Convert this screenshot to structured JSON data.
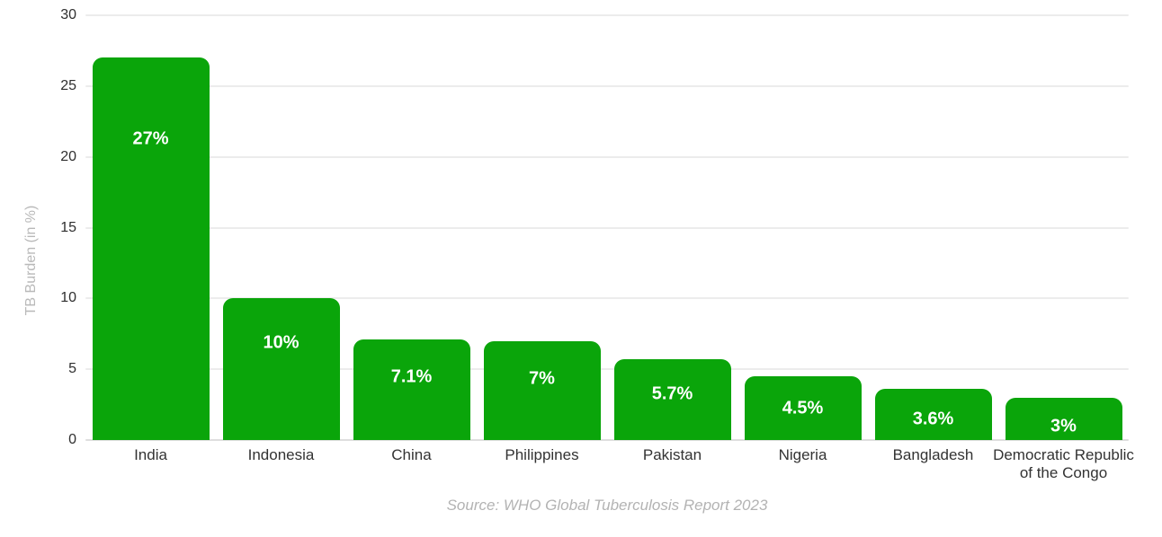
{
  "chart_data": {
    "type": "bar",
    "title": "",
    "categories": [
      "India",
      "Indonesia",
      "China",
      "Philippines",
      "Pakistan",
      "Nigeria",
      "Bangladesh",
      "Democratic Republic of the Congo"
    ],
    "values": [
      27,
      10,
      7.1,
      7,
      5.7,
      4.5,
      3.6,
      3
    ],
    "value_labels": [
      "27%",
      "10%",
      "7.1%",
      "7%",
      "5.7%",
      "4.5%",
      "3.6%",
      "3%"
    ],
    "xlabel": "",
    "ylabel": "TB Burden (in %)",
    "ylim": [
      0,
      30
    ],
    "yticks": [
      0,
      5,
      10,
      15,
      20,
      25,
      30
    ],
    "grid": true,
    "legend": "none",
    "bar_color": "#0aa50a",
    "value_label_color": "#ffffff",
    "source": "Source: WHO Global Tuberculosis Report 2023"
  }
}
